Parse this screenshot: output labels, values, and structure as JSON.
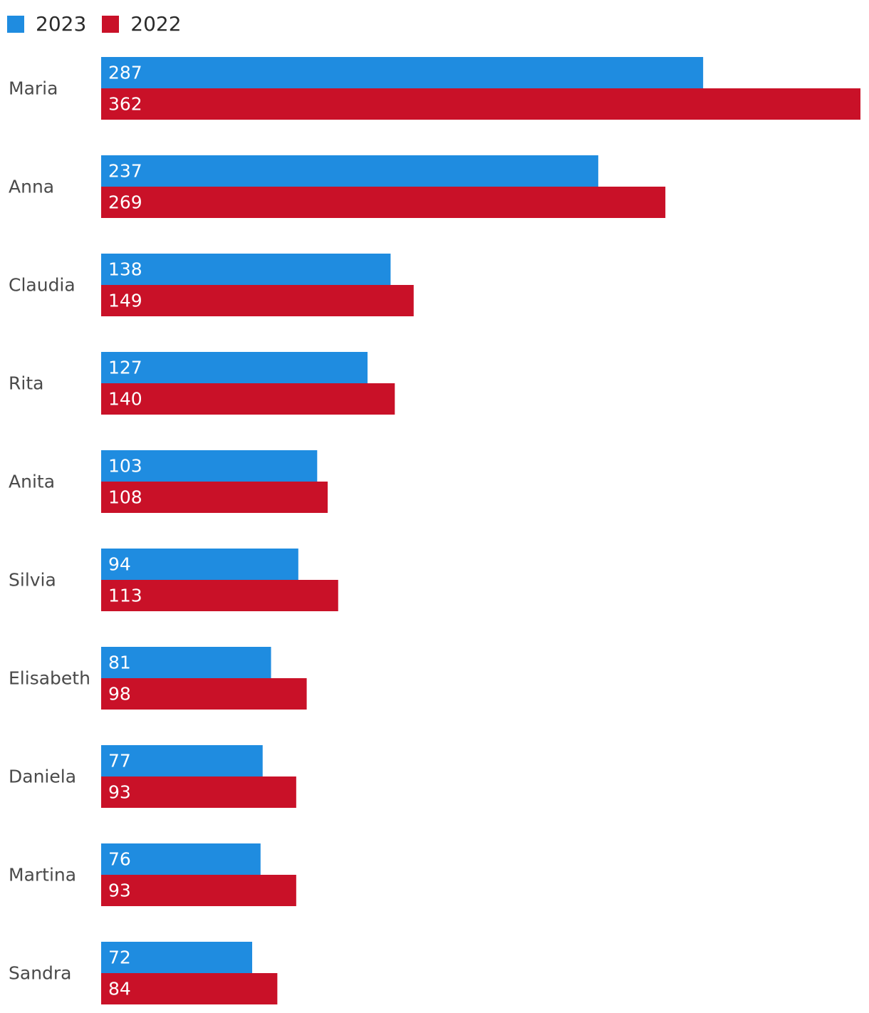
{
  "chart_data": {
    "type": "bar",
    "orientation": "horizontal",
    "categories": [
      "Maria",
      "Anna",
      "Claudia",
      "Rita",
      "Anita",
      "Silvia",
      "Elisabeth",
      "Daniela",
      "Martina",
      "Sandra"
    ],
    "series": [
      {
        "name": "2023",
        "color": "#1f8ce0",
        "values": [
          287,
          237,
          138,
          127,
          103,
          94,
          81,
          77,
          76,
          72
        ]
      },
      {
        "name": "2022",
        "color": "#c91128",
        "values": [
          362,
          269,
          149,
          140,
          108,
          113,
          98,
          93,
          93,
          84
        ]
      }
    ],
    "legend_position": "top-left",
    "data_labels": "inside-bar-start",
    "grid": false,
    "xlim": [
      0,
      362
    ],
    "title": "",
    "xlabel": "",
    "ylabel": ""
  }
}
